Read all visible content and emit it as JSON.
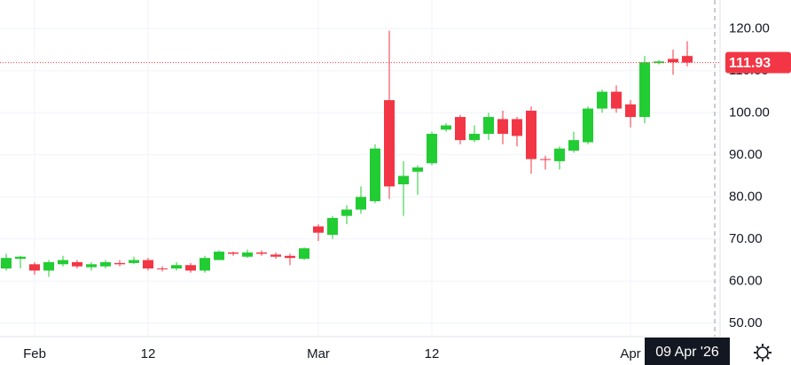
{
  "chart_data": {
    "type": "candlestick",
    "categories": [
      null,
      null,
      "Feb",
      null,
      null,
      null,
      null,
      null,
      null,
      null,
      "12",
      null,
      null,
      null,
      null,
      null,
      null,
      null,
      null,
      null,
      null,
      null,
      "Mar",
      null,
      null,
      null,
      null,
      null,
      null,
      null,
      "12",
      null,
      null,
      null,
      null,
      null,
      null,
      null,
      null,
      null,
      null,
      null,
      null,
      null,
      "Apr",
      null,
      null,
      null,
      null
    ],
    "open": [
      63,
      65.3,
      64,
      62.5,
      64,
      64.5,
      63.3,
      63.5,
      64.3,
      64.3,
      65,
      63,
      63,
      63.8,
      62.5,
      65,
      66.8,
      65.8,
      66.8,
      66.3,
      66,
      65.3,
      73,
      71,
      75.5,
      77,
      79,
      103,
      83,
      86,
      88,
      96,
      99,
      93.5,
      95,
      98.5,
      98.5,
      100.5,
      89,
      88.5,
      91,
      93,
      101,
      105,
      102,
      99,
      111.8,
      112.8,
      113.5
    ],
    "high": [
      66.5,
      66,
      64.5,
      65,
      66,
      65,
      64.5,
      65,
      65,
      65.8,
      65.5,
      63.5,
      64.5,
      64.3,
      66,
      67.3,
      67,
      67.5,
      67.3,
      66.8,
      66.5,
      68,
      73.5,
      75.5,
      78,
      82.5,
      92.5,
      119.5,
      88.5,
      87.5,
      95.5,
      97.5,
      99.5,
      97,
      100,
      100.5,
      99,
      101.5,
      89.8,
      92,
      95.5,
      101.5,
      105.5,
      106.5,
      103,
      113.5,
      112.5,
      115,
      117
    ],
    "low": [
      62.5,
      63,
      61.5,
      61,
      63.5,
      63,
      62.5,
      63,
      63.5,
      64,
      62.5,
      62.3,
      62.5,
      62,
      62,
      65,
      66,
      65.5,
      66,
      65.3,
      63.8,
      65,
      69.5,
      70,
      73.5,
      76,
      78.5,
      79.5,
      75.5,
      80.5,
      87.5,
      95.5,
      92.5,
      93,
      93.5,
      92.5,
      92,
      85.5,
      86.5,
      86.5,
      90.5,
      92.5,
      100,
      100,
      96.5,
      97.5,
      111.5,
      109,
      111
    ],
    "close": [
      65.5,
      65.8,
      62.5,
      64.5,
      65,
      63.5,
      64,
      64.5,
      64,
      65,
      63,
      62.8,
      63.8,
      62.5,
      65.5,
      67,
      66.5,
      66.8,
      66.5,
      65.8,
      65.5,
      67.8,
      71.5,
      75,
      77,
      80,
      91.5,
      82.5,
      85,
      87,
      95,
      97,
      93.5,
      95,
      99,
      95,
      94.5,
      89,
      88.8,
      91.5,
      93.5,
      101,
      105,
      101,
      99,
      112,
      112.2,
      112,
      111.93
    ],
    "up_color": "#22cc33",
    "down_color": "#f23645",
    "ylim": [
      46.8,
      126.8
    ],
    "yticks": [
      {
        "value": 50,
        "label": "50.00"
      },
      {
        "value": 60,
        "label": "60.00"
      },
      {
        "value": 70,
        "label": "70.00"
      },
      {
        "value": 80,
        "label": "80.00"
      },
      {
        "value": 90,
        "label": "90.00"
      },
      {
        "value": 100,
        "label": "100.00"
      },
      {
        "value": 110,
        "label": "110.00"
      },
      {
        "value": 120,
        "label": "120.00"
      }
    ],
    "grid": true,
    "last_price": {
      "value": 111.93,
      "label": "111.93"
    },
    "crosshair_label": "09 Apr '26"
  }
}
